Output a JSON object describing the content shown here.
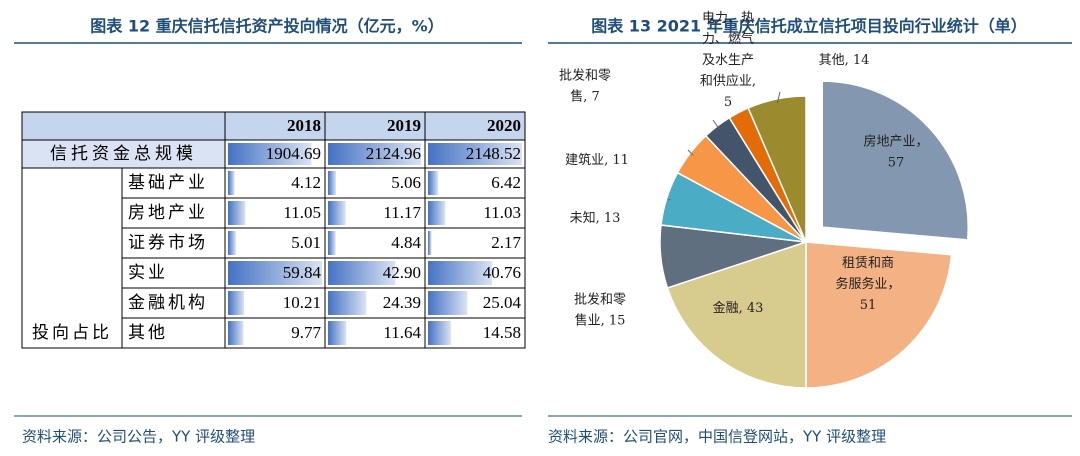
{
  "table_figure": {
    "title": "图表 12 重庆信托信托资产投向情况（亿元，%）",
    "columns": [
      "2018",
      "2019",
      "2020"
    ],
    "total": {
      "label": "信托资金总规模",
      "values": [
        1904.69,
        2124.96,
        2148.52
      ]
    },
    "group_label": "投向占比",
    "rows": [
      {
        "label": "基础产业",
        "values": [
          4.12,
          5.06,
          6.42
        ]
      },
      {
        "label": "房地产业",
        "values": [
          11.05,
          11.17,
          11.03
        ]
      },
      {
        "label": "证券市场",
        "values": [
          5.01,
          4.84,
          2.17
        ]
      },
      {
        "label": "实业",
        "values": [
          59.84,
          42.9,
          40.76
        ],
        "value_labels": [
          "59.84",
          "42.90",
          "40.76"
        ]
      },
      {
        "label": "金融机构",
        "values": [
          10.21,
          24.39,
          25.04
        ]
      },
      {
        "label": "其他",
        "values": [
          9.77,
          11.64,
          14.58
        ]
      }
    ],
    "source": "资料来源：公司公告，YY 评级整理"
  },
  "chart_data": {
    "type": "pie",
    "title": "图表 13 2021 年重庆信托成立信托项目投向行业统计（单）",
    "values": [
      57,
      51,
      43,
      15,
      13,
      11,
      7,
      5,
      14
    ],
    "value_labels": [
      "房地产业，\n57",
      "租赁和商\n务服务业，\n51",
      "金融, 43",
      "批发和零\n售业, 15",
      "未知, 13",
      "建筑业, 11",
      "批发和零\n售, 7",
      "电力、热\n力、燃气\n及水生产\n和供应业,\n5",
      "其他, 14"
    ],
    "colors": [
      "#8497b0",
      "#f4b183",
      "#d8cb8e",
      "#5f6f80",
      "#4bacc6",
      "#f79646",
      "#44546a",
      "#e36c09",
      "#9c8a2e"
    ],
    "exploded": [
      0
    ],
    "source": "资料来源：公司官网，中国信登网站，YY 评级整理"
  }
}
